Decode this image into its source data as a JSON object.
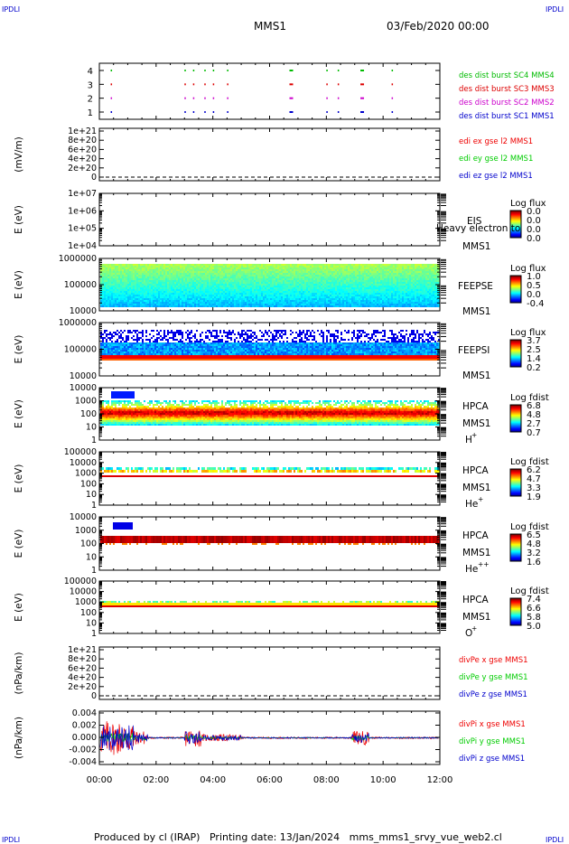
{
  "header": {
    "corner_left_top": "IPDLI",
    "corner_right_top": "IPDLI",
    "corner_left_bottom": "IPDLI",
    "corner_right_bottom": "IPDLI",
    "spacecraft": "MMS1",
    "date": "03/Feb/2020 00:00"
  },
  "footer": {
    "producer": "Produced by cl (IRAP)",
    "printing": "Printing date: 13/Jan/2024",
    "script": "mms_mms1_srvy_vue_web2.cl"
  },
  "colors": {
    "mms1": "#0000cc",
    "mms2": "#cc00cc",
    "mms3": "#dd0000",
    "mms4": "#00bb00",
    "x": "#ee0000",
    "y": "#00cc00",
    "z": "#0000cc"
  },
  "chart_data": {
    "type": "multi-panel time series",
    "x_tick_labels": [
      "00:00",
      "02:00",
      "04:00",
      "06:00",
      "08:00",
      "10:00",
      "12:00"
    ],
    "x_range_hours": [
      0,
      12
    ],
    "panels": [
      {
        "id": "burst",
        "type": "event",
        "ylabel": "",
        "yticks": [
          "4",
          "3",
          "2",
          "1"
        ],
        "series": [
          {
            "name": "des dist burst SC1 MMS1",
            "color": "#0000cc",
            "level": 1
          },
          {
            "name": "des dist burst SC2 MMS2",
            "color": "#cc00cc",
            "level": 2
          },
          {
            "name": "des dist burst SC3 MMS3",
            "color": "#dd0000",
            "level": 3
          },
          {
            "name": "des dist burst SC4 MMS4",
            "color": "#00bb00",
            "level": 4
          }
        ],
        "event_times_hours": [
          0.4,
          3.0,
          3.3,
          3.7,
          4.0,
          4.5,
          6.7,
          8.0,
          8.4,
          9.2,
          10.3
        ]
      },
      {
        "id": "edi",
        "type": "line",
        "ylabel": "(mV/m)",
        "yticks": [
          "1e+21",
          "8e+20",
          "6e+20",
          "4e+20",
          "2e+20",
          "0"
        ],
        "series": [
          {
            "name": "edi ex gse l2 MMS1",
            "color": "#ee0000"
          },
          {
            "name": "edi ey gse l2 MMS1",
            "color": "#00cc00"
          },
          {
            "name": "edi ez gse l2 MMS1",
            "color": "#0000cc"
          }
        ]
      },
      {
        "id": "eis",
        "type": "heatmap",
        "ylabel": "E (eV)",
        "yticks": [
          "1e+07",
          "1e+06",
          "1e+05",
          "1e+04"
        ],
        "instrument": "EIS",
        "sc": "MMS1",
        "overlay_text": "Heavy electron to",
        "colorbar": {
          "title": "Log flux",
          "ticks": [
            "0.0",
            "0.0",
            "0.0",
            "0.0"
          ]
        },
        "band": null
      },
      {
        "id": "feepse",
        "type": "heatmap",
        "ylabel": "E (eV)",
        "yticks": [
          "1000000",
          "100000",
          "10000"
        ],
        "instrument": "FEEPSE",
        "sc": "MMS1",
        "colorbar": {
          "title": "Log flux",
          "ticks": [
            "1.0",
            "0.5",
            "0.0",
            "-0.4"
          ]
        },
        "band": {
          "kind": "feepse"
        }
      },
      {
        "id": "feepsi",
        "type": "heatmap",
        "ylabel": "E (eV)",
        "yticks": [
          "1000000",
          "100000",
          "10000"
        ],
        "instrument": "FEEPSI",
        "sc": "MMS1",
        "colorbar": {
          "title": "Log flux",
          "ticks": [
            "3.7",
            "2.5",
            "1.4",
            "0.2"
          ]
        },
        "band": {
          "kind": "feepsi"
        }
      },
      {
        "id": "hpca_h",
        "type": "heatmap",
        "ylabel": "E (eV)",
        "yticks": [
          "10000",
          "1000",
          "100",
          "10",
          "1"
        ],
        "instrument": "HPCA",
        "sc": "MMS1",
        "species": "H",
        "species_sup": "+",
        "colorbar": {
          "title": "Log fdist",
          "ticks": [
            "6.8",
            "4.8",
            "2.7",
            "0.7"
          ]
        },
        "band": {
          "kind": "hpca_h"
        }
      },
      {
        "id": "hpca_he",
        "type": "heatmap",
        "ylabel": "E (eV)",
        "yticks": [
          "100000",
          "10000",
          "1000",
          "100",
          "10",
          "1"
        ],
        "instrument": "HPCA",
        "sc": "MMS1",
        "species": "He",
        "species_sup": "+",
        "colorbar": {
          "title": "Log fdist",
          "ticks": [
            "6.2",
            "4.7",
            "3.3",
            "1.9"
          ]
        },
        "band": {
          "kind": "hpca_he"
        }
      },
      {
        "id": "hpca_hepp",
        "type": "heatmap",
        "ylabel": "E (eV)",
        "yticks": [
          "10000",
          "1000",
          "100",
          "10",
          "1"
        ],
        "instrument": "HPCA",
        "sc": "MMS1",
        "species": "He",
        "species_sup": "++",
        "colorbar": {
          "title": "Log fdist",
          "ticks": [
            "6.5",
            "4.8",
            "3.2",
            "1.6"
          ]
        },
        "band": {
          "kind": "hpca_hepp"
        }
      },
      {
        "id": "hpca_o",
        "type": "heatmap",
        "ylabel": "E (eV)",
        "yticks": [
          "100000",
          "10000",
          "1000",
          "100",
          "10",
          "1"
        ],
        "instrument": "HPCA",
        "sc": "MMS1",
        "species": "O",
        "species_sup": "+",
        "colorbar": {
          "title": "Log fdist",
          "ticks": [
            "7.4",
            "6.6",
            "5.8",
            "5.0"
          ]
        },
        "band": {
          "kind": "hpca_o"
        }
      },
      {
        "id": "divpe",
        "type": "line",
        "ylabel": "(nPa/km)",
        "yticks": [
          "1e+21",
          "8e+20",
          "6e+20",
          "4e+20",
          "2e+20",
          "0"
        ],
        "series": [
          {
            "name": "divPe x gse MMS1",
            "color": "#ee0000"
          },
          {
            "name": "divPe y gse MMS1",
            "color": "#00cc00"
          },
          {
            "name": "divPe z gse MMS1",
            "color": "#0000cc"
          }
        ]
      },
      {
        "id": "divpi",
        "type": "line",
        "ylabel": "(nPa/km)",
        "yticks": [
          "0.004",
          "0.002",
          "0.000",
          "-0.002",
          "-0.004"
        ],
        "ylim": [
          -0.0045,
          0.0045
        ],
        "series": [
          {
            "name": "divPi x gse MMS1",
            "color": "#ee0000"
          },
          {
            "name": "divPi y gse MMS1",
            "color": "#00cc00"
          },
          {
            "name": "divPi z gse MMS1",
            "color": "#0000cc"
          }
        ]
      }
    ]
  }
}
